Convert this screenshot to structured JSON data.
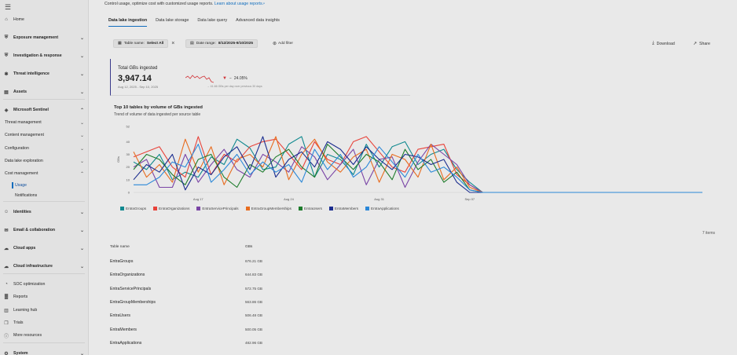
{
  "sidebar": {
    "items": [
      {
        "label": "Home",
        "icon": "home-icon",
        "chevron": "",
        "bold": false
      },
      {
        "label": "Exposure management",
        "icon": "shield-icon",
        "chevron": "down",
        "bold": true
      },
      {
        "label": "Investigation & response",
        "icon": "shield-alert-icon",
        "chevron": "down",
        "bold": true
      },
      {
        "label": "Threat intelligence",
        "icon": "bug-icon",
        "chevron": "down",
        "bold": true
      },
      {
        "label": "Assets",
        "icon": "server-icon",
        "chevron": "down",
        "bold": true
      },
      {
        "label": "Microsoft Sentinel",
        "icon": "sentinel-icon",
        "chevron": "up",
        "bold": true
      },
      {
        "label": "Threat management",
        "icon": "",
        "chevron": "down",
        "bold": false
      },
      {
        "label": "Content management",
        "icon": "",
        "chevron": "down",
        "bold": false
      },
      {
        "label": "Configuration",
        "icon": "",
        "chevron": "down",
        "bold": false
      },
      {
        "label": "Data lake exploration",
        "icon": "",
        "chevron": "down",
        "bold": false
      },
      {
        "label": "Cost management",
        "icon": "",
        "chevron": "up",
        "bold": false
      },
      {
        "label": "Usage",
        "icon": "",
        "chevron": "",
        "bold": false
      },
      {
        "label": "Notifications",
        "icon": "",
        "chevron": "",
        "bold": false
      },
      {
        "label": "Identities",
        "icon": "identity-icon",
        "chevron": "down",
        "bold": true
      },
      {
        "label": "Email & collaboration",
        "icon": "mail-icon",
        "chevron": "down",
        "bold": true
      },
      {
        "label": "Cloud apps",
        "icon": "cloud-icon",
        "chevron": "down",
        "bold": true
      },
      {
        "label": "Cloud infrastructure",
        "icon": "cloud-shield-icon",
        "chevron": "down",
        "bold": true
      },
      {
        "label": "SOC optimization",
        "icon": "gauge-icon",
        "chevron": "",
        "bold": false
      },
      {
        "label": "Reports",
        "icon": "chart-icon",
        "chevron": "",
        "bold": false
      },
      {
        "label": "Learning hub",
        "icon": "book-icon",
        "chevron": "",
        "bold": false
      },
      {
        "label": "Trials",
        "icon": "gift-icon",
        "chevron": "",
        "bold": false
      },
      {
        "label": "More resources",
        "icon": "info-icon",
        "chevron": "",
        "bold": false
      },
      {
        "label": "System",
        "icon": "gear-icon",
        "chevron": "down",
        "bold": true
      }
    ]
  },
  "header": {
    "subtitle": "Control usage, optimize cost with customized usage reports.",
    "link": "Learn about usage reports"
  },
  "tabs": [
    {
      "label": "Data lake ingestion",
      "active": true
    },
    {
      "label": "Data lake storage",
      "active": false
    },
    {
      "label": "Data lake query",
      "active": false
    },
    {
      "label": "Advanced data insights",
      "active": false
    }
  ],
  "filters": {
    "table_key": "Table name:",
    "table_value": "Select All",
    "date_key": "Date range:",
    "date_value": "8/12/2025-9/10/2025",
    "add_filter": "Add filter"
  },
  "actions": {
    "download": "Download",
    "share": "Share"
  },
  "kpi": {
    "title": "Total GBs ingested",
    "value": "3,947.14",
    "range": "Aug 12, 2025 - Sep 10, 2025",
    "delta": "24.05%",
    "delta_direction": "down",
    "note": "41.66 GBs per day over previous 30 days"
  },
  "chart": {
    "title": "Top 10 tables by volume of GBs ingested",
    "subtitle": "Trend of volume of data ingested per source table",
    "ylabel": "GBs"
  },
  "chart_data": {
    "type": "line",
    "title": "Top 10 tables by volume of GBs ingested",
    "ylabel": "GBs",
    "ylim": [
      0,
      52
    ],
    "yticks": [
      0,
      10,
      20,
      30,
      40,
      52
    ],
    "xticks": [
      "Aug 17",
      "Aug 24",
      "Aug 31",
      "Sep 07"
    ],
    "x_index_ticks": [
      5,
      12,
      19,
      26
    ],
    "grid": false,
    "legend_position": "bottom",
    "series": [
      {
        "name": "EntraGroups",
        "color": "#10898f",
        "values": [
          24,
          18,
          30,
          10,
          16,
          12,
          28,
          22,
          42,
          35,
          18,
          20,
          38,
          44,
          12,
          30,
          26,
          14,
          38,
          20,
          36,
          40,
          22,
          30,
          34,
          18,
          8,
          0,
          0,
          0,
          0,
          0,
          0,
          0,
          0,
          0,
          0,
          0,
          0,
          0,
          0,
          0,
          0,
          0,
          0
        ]
      },
      {
        "name": "EntraOrganizations",
        "color": "#e8433a",
        "values": [
          28,
          32,
          36,
          20,
          12,
          44,
          14,
          30,
          24,
          36,
          40,
          42,
          30,
          18,
          40,
          26,
          22,
          40,
          44,
          32,
          20,
          16,
          34,
          36,
          38,
          14,
          6,
          0,
          0,
          0,
          0,
          0,
          0,
          0,
          0,
          0,
          0,
          0,
          0,
          0,
          0,
          0,
          0,
          0,
          0
        ]
      },
      {
        "name": "EntraServicePrincipals",
        "color": "#7a45a6",
        "values": [
          20,
          26,
          4,
          4,
          30,
          8,
          22,
          34,
          18,
          12,
          30,
          24,
          16,
          36,
          28,
          10,
          22,
          34,
          6,
          26,
          28,
          4,
          24,
          38,
          30,
          22,
          6,
          0,
          0,
          0,
          0,
          0,
          0,
          0,
          0,
          0,
          0,
          0,
          0,
          0,
          0,
          0,
          0,
          0,
          0
        ]
      },
      {
        "name": "EntraGroupMemberships",
        "color": "#e86c1f",
        "values": [
          32,
          12,
          22,
          8,
          42,
          16,
          36,
          6,
          26,
          30,
          20,
          44,
          10,
          30,
          42,
          24,
          16,
          28,
          34,
          8,
          30,
          26,
          12,
          38,
          10,
          20,
          4,
          0,
          0,
          0,
          0,
          0,
          0,
          0,
          0,
          0,
          0,
          0,
          0,
          0,
          0,
          0,
          0,
          0,
          0
        ]
      },
      {
        "name": "EntraUsers",
        "color": "#1e7c2c",
        "values": [
          18,
          30,
          26,
          14,
          6,
          26,
          30,
          12,
          4,
          22,
          16,
          28,
          34,
          20,
          12,
          38,
          28,
          18,
          30,
          24,
          10,
          34,
          18,
          26,
          8,
          16,
          2,
          0,
          0,
          0,
          0,
          0,
          0,
          0,
          0,
          0,
          0,
          0,
          0,
          0,
          0,
          0,
          0,
          0,
          0
        ]
      },
      {
        "name": "EntraMembers",
        "color": "#1b2d8f",
        "values": [
          10,
          22,
          16,
          30,
          2,
          20,
          14,
          28,
          36,
          18,
          44,
          12,
          26,
          32,
          20,
          40,
          34,
          22,
          36,
          26,
          18,
          30,
          28,
          22,
          26,
          8,
          0,
          0,
          0,
          0,
          0,
          0,
          0,
          0,
          0,
          0,
          0,
          0,
          0,
          0,
          0,
          0,
          0,
          0,
          0
        ]
      },
      {
        "name": "EntraApplications",
        "color": "#2b88d8",
        "values": [
          6,
          6,
          12,
          24,
          20,
          38,
          8,
          18,
          30,
          14,
          24,
          16,
          22,
          8,
          34,
          18,
          30,
          12,
          20,
          36,
          24,
          12,
          30,
          16,
          20,
          12,
          2,
          0,
          0,
          0,
          0,
          0,
          0,
          0,
          0,
          0,
          0,
          0,
          0,
          0,
          0,
          0,
          0,
          0,
          0
        ]
      }
    ]
  },
  "table": {
    "count": "7 items",
    "headers": [
      "Table name",
      "GBs"
    ],
    "rows": [
      {
        "name": "EntraGroups",
        "gbs": "676.21 GB"
      },
      {
        "name": "EntraOrganizations",
        "gbs": "644.83 GB"
      },
      {
        "name": "EntraServicePrincipals",
        "gbs": "572.75 GB"
      },
      {
        "name": "EntraGroupMemberships",
        "gbs": "563.86 GB"
      },
      {
        "name": "EntraUsers",
        "gbs": "506.48 GB"
      },
      {
        "name": "EntraMembers",
        "gbs": "500.05 GB"
      },
      {
        "name": "EntraApplications",
        "gbs": "482.96 GB"
      }
    ]
  }
}
